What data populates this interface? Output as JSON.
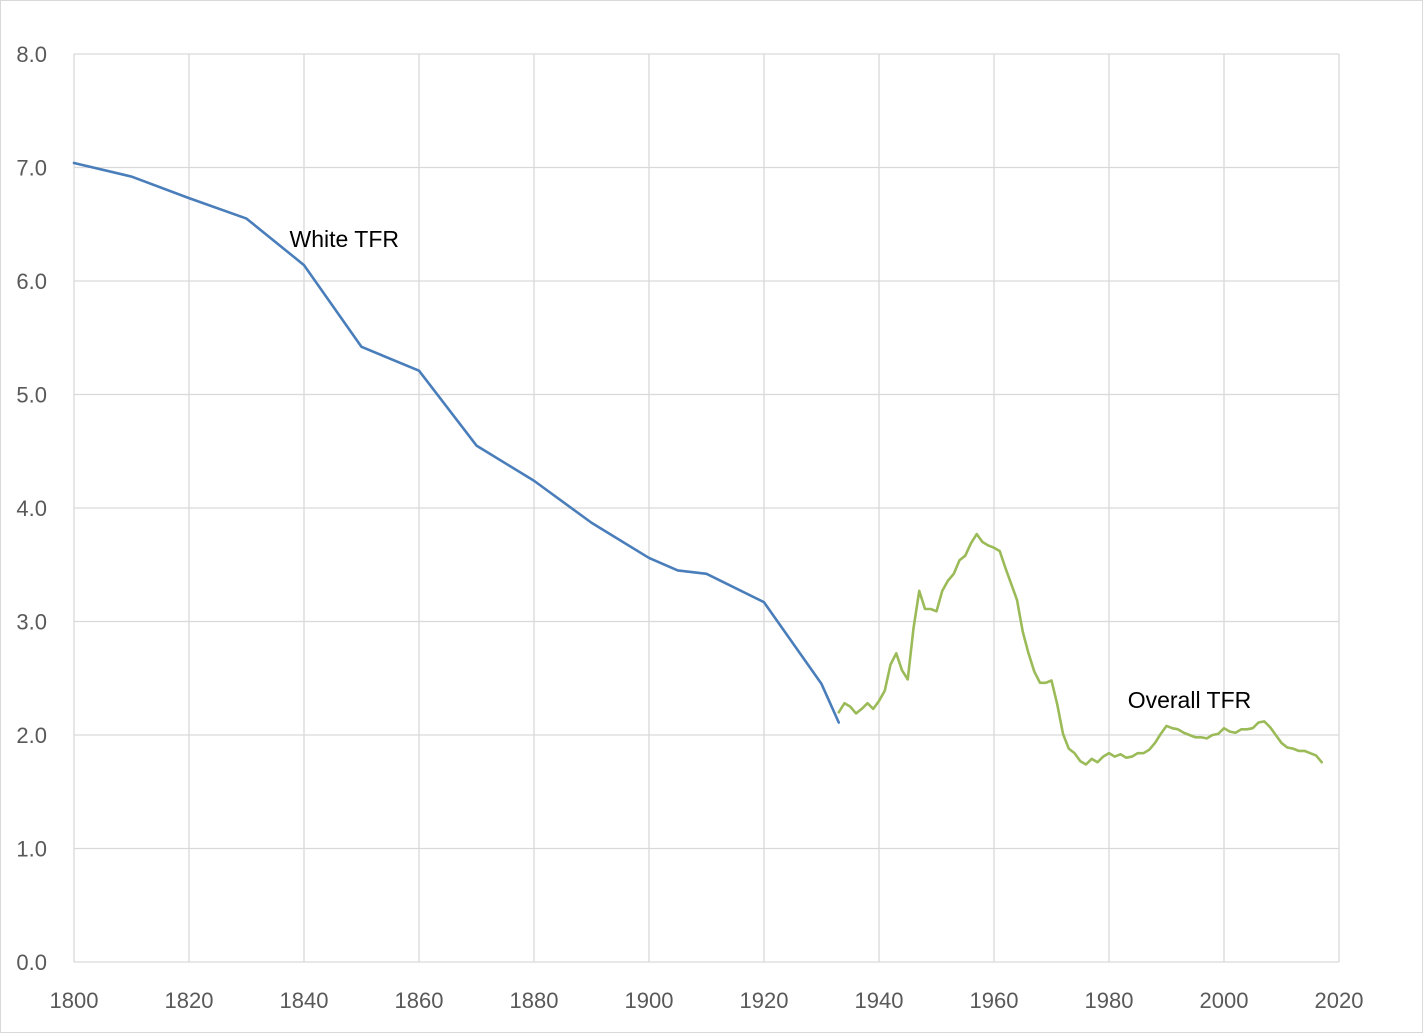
{
  "chart_data": {
    "type": "line",
    "title": "",
    "xlabel": "",
    "ylabel": "",
    "xlim": [
      1800,
      2020
    ],
    "ylim": [
      0,
      8
    ],
    "x_ticks": [
      "1800",
      "1820",
      "1840",
      "1860",
      "1880",
      "1900",
      "1920",
      "1940",
      "1960",
      "1980",
      "2000",
      "2020"
    ],
    "y_ticks": [
      "0.0",
      "1.0",
      "2.0",
      "3.0",
      "4.0",
      "5.0",
      "6.0",
      "7.0",
      "8.0"
    ],
    "grid": true,
    "legend": "none",
    "colors": {
      "white_tfr": "#4a7ebb",
      "overall_tfr": "#9bbb59",
      "grid": "#d9d9d9"
    },
    "series": [
      {
        "name": "White TFR",
        "points": [
          [
            1800,
            7.04
          ],
          [
            1810,
            6.92
          ],
          [
            1820,
            6.73
          ],
          [
            1830,
            6.55
          ],
          [
            1840,
            6.14
          ],
          [
            1850,
            5.42
          ],
          [
            1860,
            5.21
          ],
          [
            1870,
            4.55
          ],
          [
            1880,
            4.24
          ],
          [
            1890,
            3.87
          ],
          [
            1900,
            3.56
          ],
          [
            1905,
            3.45
          ],
          [
            1910,
            3.42
          ],
          [
            1920,
            3.17
          ],
          [
            1930,
            2.45
          ],
          [
            1933,
            2.11
          ]
        ]
      },
      {
        "name": "Overall TFR",
        "points": [
          [
            1933,
            2.2
          ],
          [
            1934,
            2.28
          ],
          [
            1935,
            2.25
          ],
          [
            1936,
            2.19
          ],
          [
            1937,
            2.23
          ],
          [
            1938,
            2.28
          ],
          [
            1939,
            2.23
          ],
          [
            1940,
            2.3
          ],
          [
            1941,
            2.39
          ],
          [
            1942,
            2.62
          ],
          [
            1943,
            2.72
          ],
          [
            1944,
            2.57
          ],
          [
            1945,
            2.49
          ],
          [
            1946,
            2.94
          ],
          [
            1947,
            3.27
          ],
          [
            1948,
            3.11
          ],
          [
            1949,
            3.11
          ],
          [
            1950,
            3.09
          ],
          [
            1951,
            3.27
          ],
          [
            1952,
            3.36
          ],
          [
            1953,
            3.42
          ],
          [
            1954,
            3.54
          ],
          [
            1955,
            3.58
          ],
          [
            1956,
            3.69
          ],
          [
            1957,
            3.77
          ],
          [
            1958,
            3.7
          ],
          [
            1959,
            3.67
          ],
          [
            1960,
            3.65
          ],
          [
            1961,
            3.62
          ],
          [
            1962,
            3.47
          ],
          [
            1963,
            3.33
          ],
          [
            1964,
            3.19
          ],
          [
            1965,
            2.91
          ],
          [
            1966,
            2.72
          ],
          [
            1967,
            2.56
          ],
          [
            1968,
            2.46
          ],
          [
            1969,
            2.46
          ],
          [
            1970,
            2.48
          ],
          [
            1971,
            2.27
          ],
          [
            1972,
            2.01
          ],
          [
            1973,
            1.88
          ],
          [
            1974,
            1.84
          ],
          [
            1975,
            1.77
          ],
          [
            1976,
            1.74
          ],
          [
            1977,
            1.79
          ],
          [
            1978,
            1.76
          ],
          [
            1979,
            1.81
          ],
          [
            1980,
            1.84
          ],
          [
            1981,
            1.81
          ],
          [
            1982,
            1.83
          ],
          [
            1983,
            1.8
          ],
          [
            1984,
            1.81
          ],
          [
            1985,
            1.84
          ],
          [
            1986,
            1.84
          ],
          [
            1987,
            1.87
          ],
          [
            1988,
            1.93
          ],
          [
            1989,
            2.01
          ],
          [
            1990,
            2.08
          ],
          [
            1991,
            2.06
          ],
          [
            1992,
            2.05
          ],
          [
            1993,
            2.02
          ],
          [
            1994,
            2.0
          ],
          [
            1995,
            1.98
          ],
          [
            1996,
            1.98
          ],
          [
            1997,
            1.97
          ],
          [
            1998,
            2.0
          ],
          [
            1999,
            2.01
          ],
          [
            2000,
            2.06
          ],
          [
            2001,
            2.03
          ],
          [
            2002,
            2.02
          ],
          [
            2003,
            2.05
          ],
          [
            2004,
            2.05
          ],
          [
            2005,
            2.06
          ],
          [
            2006,
            2.11
          ],
          [
            2007,
            2.12
          ],
          [
            2008,
            2.07
          ],
          [
            2009,
            2.0
          ],
          [
            2010,
            1.93
          ],
          [
            2011,
            1.89
          ],
          [
            2012,
            1.88
          ],
          [
            2013,
            1.86
          ],
          [
            2014,
            1.86
          ],
          [
            2015,
            1.84
          ],
          [
            2016,
            1.82
          ],
          [
            2017,
            1.76
          ]
        ]
      }
    ],
    "annotations": [
      {
        "text": "White TFR",
        "x": 1847,
        "y": 6.3
      },
      {
        "text": "Overall TFR",
        "x": 1994,
        "y": 2.24
      }
    ]
  }
}
